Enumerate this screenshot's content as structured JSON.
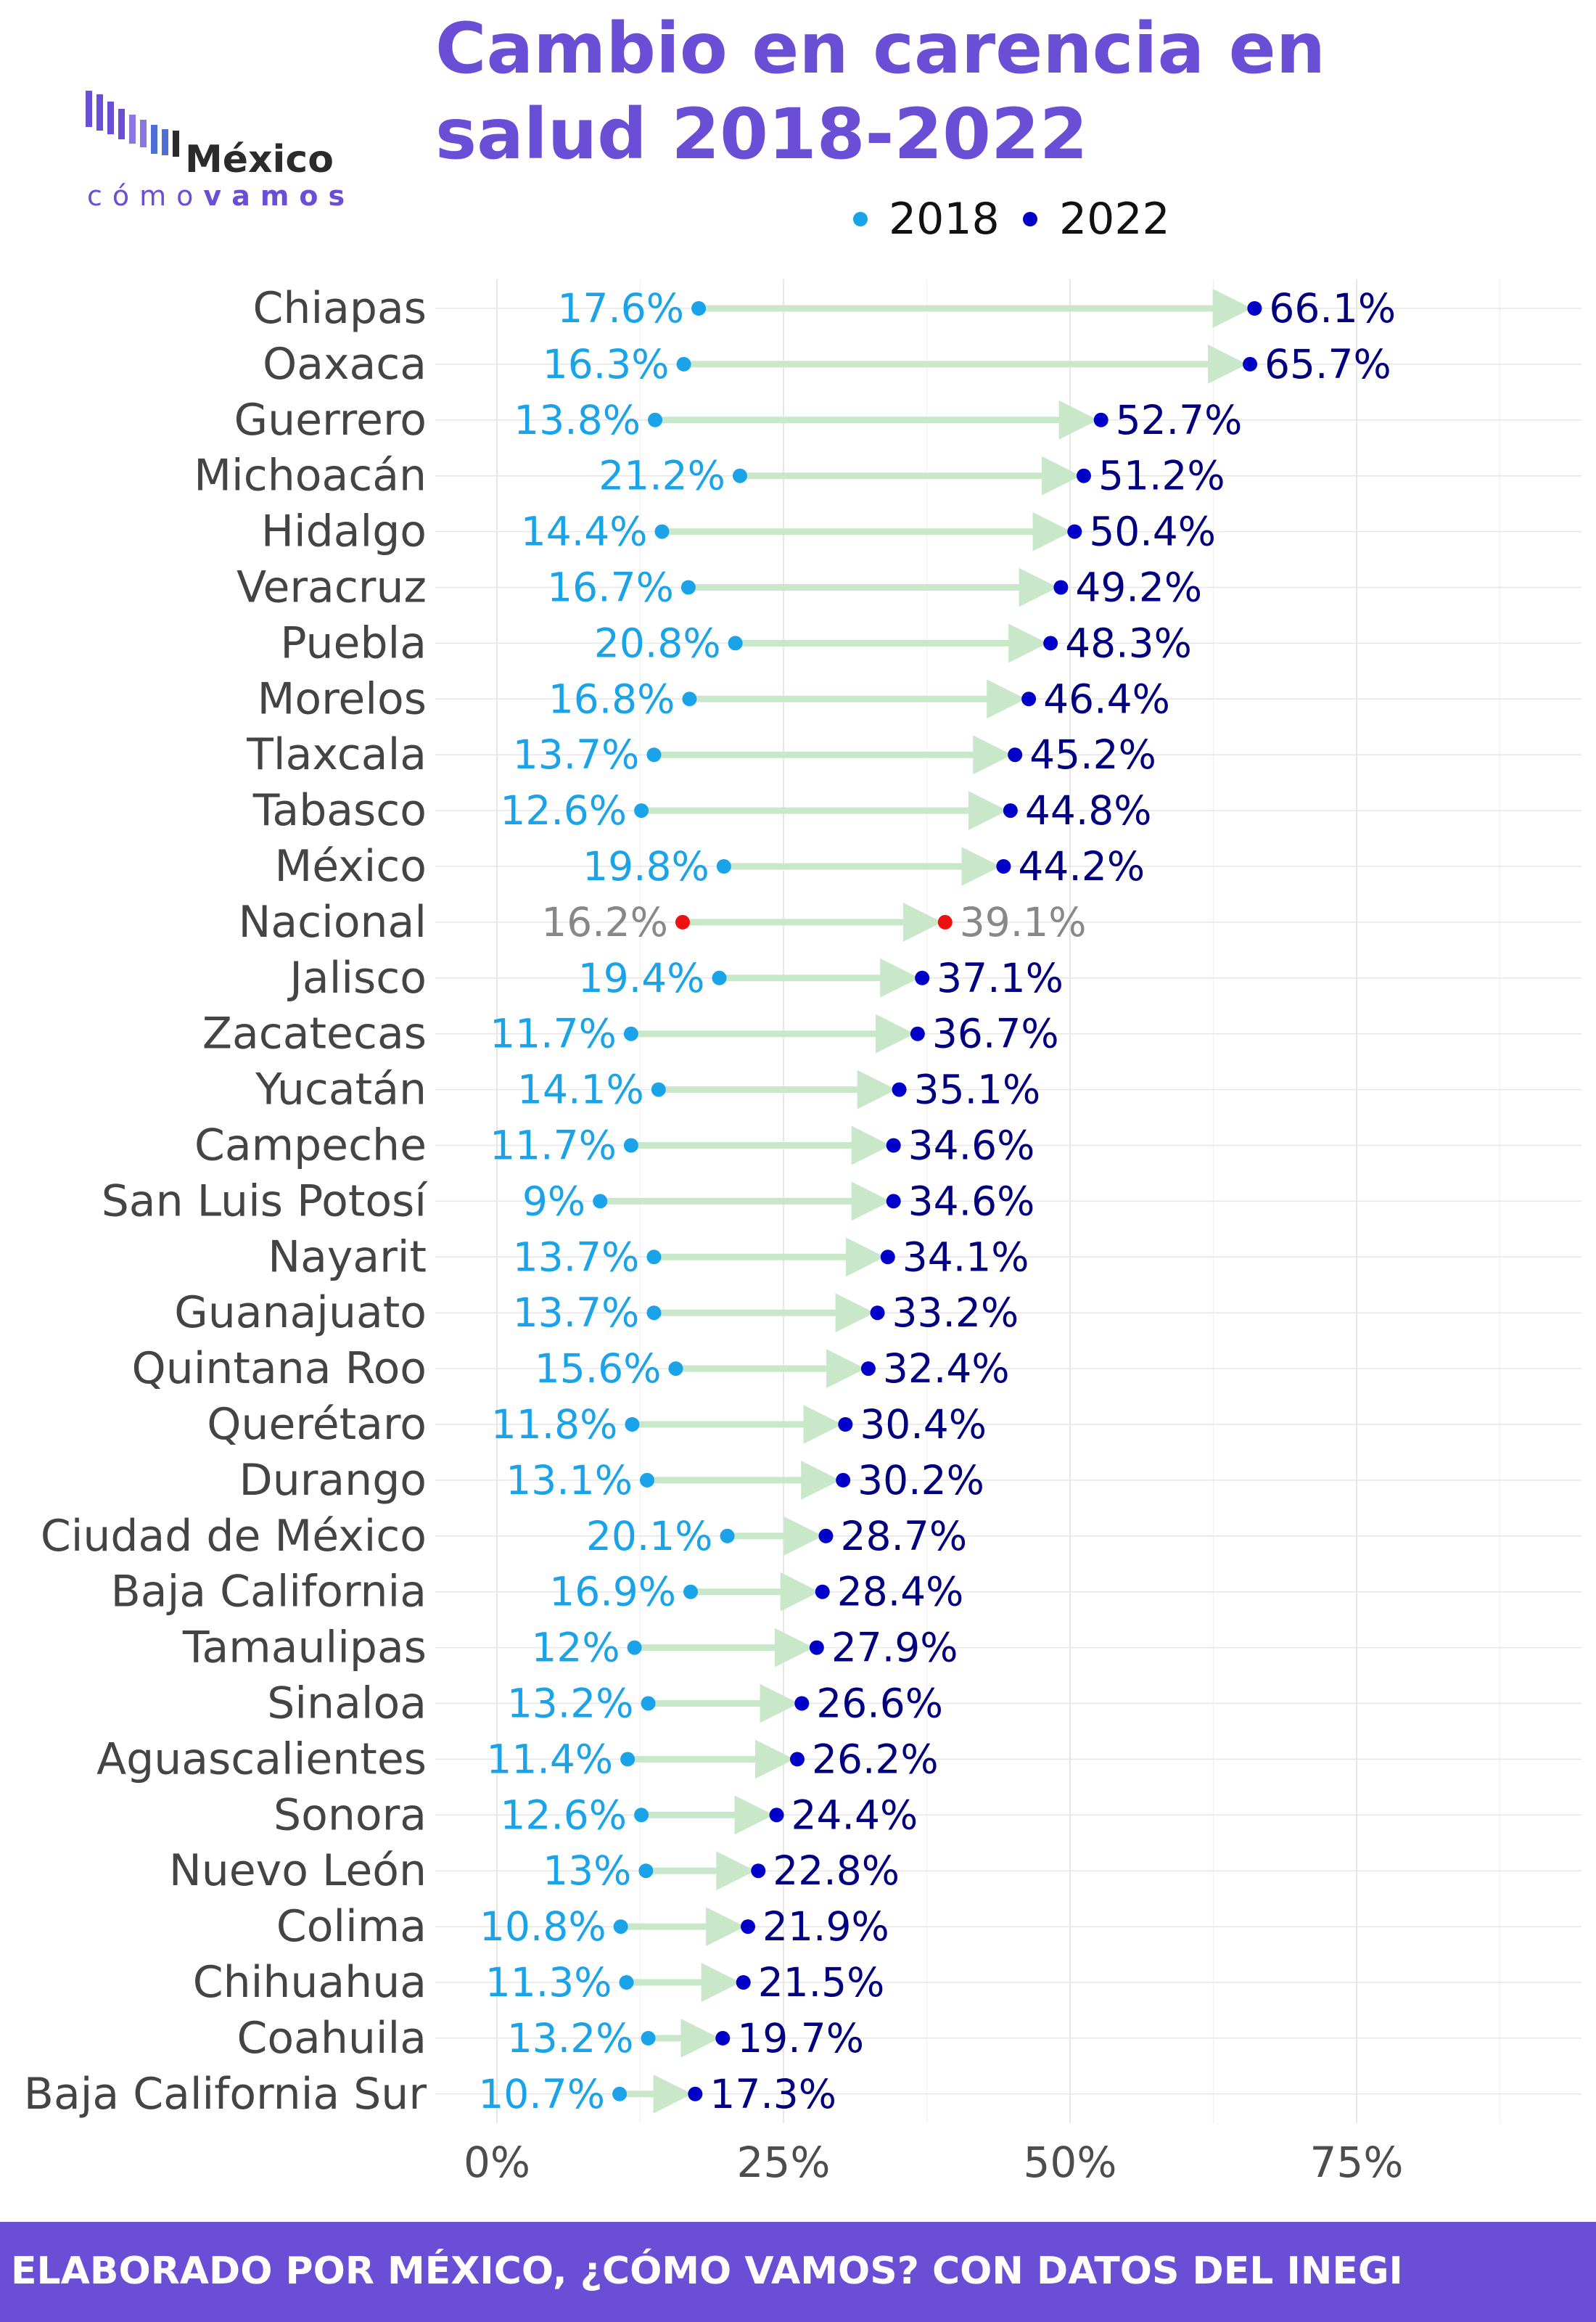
{
  "title_line1": "Cambio en carencia en",
  "title_line2": "salud 2018-2022",
  "logo": {
    "name": "México",
    "sub_plain": "cómo",
    "sub_bold": "vamos",
    "bars_icon": "bar-chart-logo-icon"
  },
  "footer": "ELABORADO POR MÉXICO, ¿CÓMO VAMOS? CON DATOS DEL INEGI",
  "colors": {
    "title": "#6a4fd6",
    "series_2018": "#1aa3e8",
    "series_2022": "#0000c8",
    "label_2022": "#000080",
    "national": "#ee1111",
    "national_label": "#888888",
    "arrow": "#c9e8c9",
    "grid": "#e6e6e6",
    "footer_bg": "#6a4fd6"
  },
  "chart_data": {
    "type": "dumbbell",
    "title": "Cambio en carencia en salud 2018-2022",
    "legend": {
      "placement": "top",
      "entries": [
        "2018",
        "2022"
      ]
    },
    "x_ticks": [
      "0%",
      "25%",
      "50%",
      "75%"
    ],
    "x_tick_values": [
      0,
      25,
      50,
      75
    ],
    "xlim": [
      0,
      95
    ],
    "grid": true,
    "categories": [
      "Chiapas",
      "Oaxaca",
      "Guerrero",
      "Michoacán",
      "Hidalgo",
      "Veracruz",
      "Puebla",
      "Morelos",
      "Tlaxcala",
      "Tabasco",
      "México",
      "Nacional",
      "Jalisco",
      "Zacatecas",
      "Yucatán",
      "Campeche",
      "San Luis Potosí",
      "Nayarit",
      "Guanajuato",
      "Quintana Roo",
      "Querétaro",
      "Durango",
      "Ciudad de México",
      "Baja California",
      "Tamaulipas",
      "Sinaloa",
      "Aguascalientes",
      "Sonora",
      "Nuevo León",
      "Colima",
      "Chihuahua",
      "Coahuila",
      "Baja California Sur"
    ],
    "highlight": "Nacional",
    "series": [
      {
        "name": "2018",
        "values": [
          17.6,
          16.3,
          13.8,
          21.2,
          14.4,
          16.7,
          20.8,
          16.8,
          13.7,
          12.6,
          19.8,
          16.2,
          19.4,
          11.7,
          14.1,
          11.7,
          9,
          13.7,
          13.7,
          15.6,
          11.8,
          13.1,
          20.1,
          16.9,
          12,
          13.2,
          11.4,
          12.6,
          13,
          10.8,
          11.3,
          13.2,
          10.7
        ],
        "labels": [
          "17.6%",
          "16.3%",
          "13.8%",
          "21.2%",
          "14.4%",
          "16.7%",
          "20.8%",
          "16.8%",
          "13.7%",
          "12.6%",
          "19.8%",
          "16.2%",
          "19.4%",
          "11.7%",
          "14.1%",
          "11.7%",
          "9%",
          "13.7%",
          "13.7%",
          "15.6%",
          "11.8%",
          "13.1%",
          "20.1%",
          "16.9%",
          "12%",
          "13.2%",
          "11.4%",
          "12.6%",
          "13%",
          "10.8%",
          "11.3%",
          "13.2%",
          "10.7%"
        ]
      },
      {
        "name": "2022",
        "values": [
          66.1,
          65.7,
          52.7,
          51.2,
          50.4,
          49.2,
          48.3,
          46.4,
          45.2,
          44.8,
          44.2,
          39.1,
          37.1,
          36.7,
          35.1,
          34.6,
          34.6,
          34.1,
          33.2,
          32.4,
          30.4,
          30.2,
          28.7,
          28.4,
          27.9,
          26.6,
          26.2,
          24.4,
          22.8,
          21.9,
          21.5,
          19.7,
          17.3
        ],
        "labels": [
          "66.1%",
          "65.7%",
          "52.7%",
          "51.2%",
          "50.4%",
          "49.2%",
          "48.3%",
          "46.4%",
          "45.2%",
          "44.8%",
          "44.2%",
          "39.1%",
          "37.1%",
          "36.7%",
          "35.1%",
          "34.6%",
          "34.6%",
          "34.1%",
          "33.2%",
          "32.4%",
          "30.4%",
          "30.2%",
          "28.7%",
          "28.4%",
          "27.9%",
          "26.6%",
          "26.2%",
          "24.4%",
          "22.8%",
          "21.9%",
          "21.5%",
          "19.7%",
          "17.3%"
        ]
      }
    ]
  }
}
